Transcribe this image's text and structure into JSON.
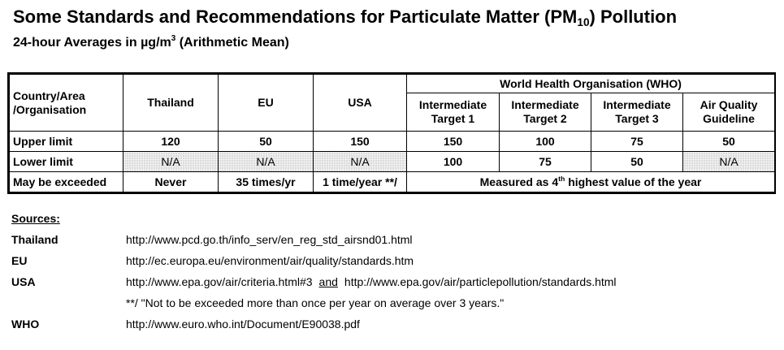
{
  "title": {
    "pre": "Some Standards and Recommendations for Particulate Matter (PM",
    "sub": "10",
    "post": ") Pollution"
  },
  "subtitle": {
    "pre": "24-hour Averages in µg/m",
    "sup": "3",
    "post": " (Arithmetic Mean)"
  },
  "table": {
    "country_header": "Country/Area\n/Organisation",
    "columns": [
      "Thailand",
      "EU",
      "USA"
    ],
    "who_header": "World Health Organisation (WHO)",
    "who_columns": [
      "Intermediate Target 1",
      "Intermediate Target 2",
      "Intermediate Target 3",
      "Air Quality Guideline"
    ],
    "rows": [
      {
        "label": "Upper limit",
        "values": [
          "120",
          "50",
          "150",
          "150",
          "100",
          "75",
          "50"
        ]
      },
      {
        "label": "Lower limit",
        "values": [
          "N/A",
          "N/A",
          "N/A",
          "100",
          "75",
          "50",
          "N/A"
        ]
      }
    ],
    "exceeded": {
      "label": "May be exceeded",
      "thailand": "Never",
      "eu": "35 times/yr",
      "usa": "1 time/year **/",
      "who_pre": "Measured as 4",
      "who_sup": "th",
      "who_post": " highest value of the year"
    }
  },
  "sources": {
    "heading": "Sources:",
    "items": [
      {
        "key": "Thailand",
        "url": "http://www.pcd.go.th/info_serv/en_reg_std_airsnd01.html"
      },
      {
        "key": "EU",
        "url": "http://ec.europa.eu/environment/air/quality/standards.htm"
      },
      {
        "key": "USA",
        "url": "http://www.epa.gov/air/criteria.html#3",
        "and": "and",
        "url2": "http://www.epa.gov/air/particlepollution/standards.html"
      },
      {
        "key": "",
        "url": "**/ \"Not to be exceeded more than once per year on average over 3 years.\""
      },
      {
        "key": "WHO",
        "url": "http://www.euro.who.int/Document/E90038.pdf"
      }
    ]
  }
}
